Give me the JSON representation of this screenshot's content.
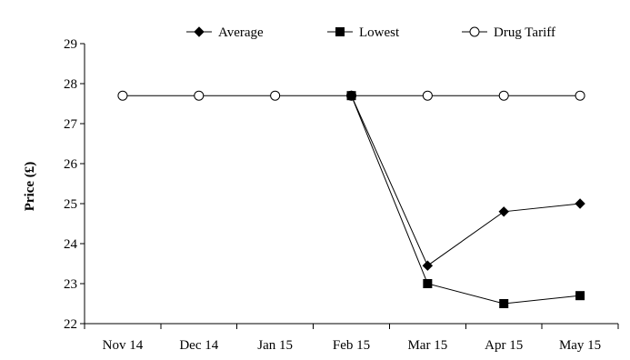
{
  "chart_data": {
    "type": "line",
    "categories": [
      "Nov 14",
      "Dec 14",
      "Jan 15",
      "Feb 15",
      "Mar 15",
      "Apr 15",
      "May 15"
    ],
    "ylabel": "Price (£)",
    "xlabel": "",
    "ylim": [
      22,
      29
    ],
    "yticks": [
      22,
      23,
      24,
      25,
      26,
      27,
      28,
      29
    ],
    "grid": false,
    "legend_position": "top",
    "series": [
      {
        "name": "Average",
        "marker": "diamond-filled",
        "values": [
          null,
          null,
          null,
          27.7,
          23.45,
          24.8,
          25.0
        ]
      },
      {
        "name": "Lowest",
        "marker": "square-filled",
        "values": [
          null,
          null,
          null,
          27.7,
          23.0,
          22.5,
          22.7
        ]
      },
      {
        "name": "Drug Tariff",
        "marker": "circle-open",
        "values": [
          27.7,
          27.7,
          27.7,
          27.7,
          27.7,
          27.7,
          27.7
        ]
      }
    ]
  }
}
